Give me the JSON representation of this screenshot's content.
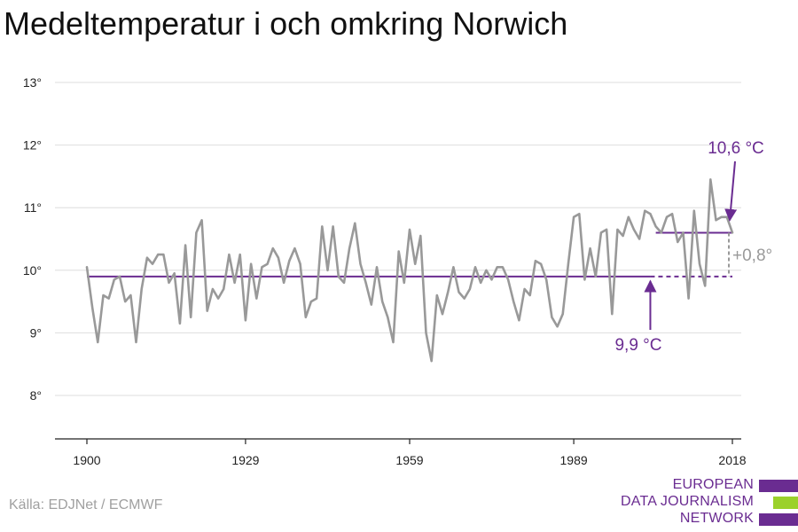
{
  "title": "Medeltemperatur i och omkring Norwich",
  "source": "Källa: EDJNet / ECMWF",
  "logo": {
    "line1": "EUROPEAN",
    "line2": "DATA JOURNALISM",
    "line3": "NETWORK",
    "colors": {
      "purple": "#6a2c91",
      "green": "#9bd12b"
    }
  },
  "colors": {
    "series": "#999999",
    "baseline": "#6a2c91",
    "recent": "#6a2c91",
    "difference": "#999999"
  },
  "chart_data": {
    "type": "line",
    "title": "Medeltemperatur i och omkring Norwich",
    "xlabel": "",
    "ylabel": "",
    "xlim": [
      1900,
      2018
    ],
    "ylim": [
      8,
      13
    ],
    "x_ticks": [
      1900,
      1929,
      1959,
      1989,
      2018
    ],
    "x_tick_labels": [
      "1900",
      "1929",
      "1959",
      "1989",
      "2018"
    ],
    "y_ticks": [
      8,
      9,
      10,
      11,
      12,
      13
    ],
    "y_tick_labels": [
      "8°",
      "9°",
      "10°",
      "11°",
      "12°",
      "13°"
    ],
    "grid": true,
    "series": [
      {
        "x": [
          1900,
          1901,
          1902,
          1903,
          1904,
          1905,
          1906,
          1907,
          1908,
          1909,
          1910,
          1911,
          1912,
          1913,
          1914,
          1915,
          1916,
          1917,
          1918,
          1919,
          1920,
          1921,
          1922,
          1923,
          1924,
          1925,
          1926,
          1927,
          1928,
          1929,
          1930,
          1931,
          1932,
          1933,
          1934,
          1935,
          1936,
          1937,
          1938,
          1939,
          1940,
          1941,
          1942,
          1943,
          1944,
          1945,
          1946,
          1947,
          1948,
          1949,
          1950,
          1951,
          1952,
          1953,
          1954,
          1955,
          1956,
          1957,
          1958,
          1959,
          1960,
          1961,
          1962,
          1963,
          1964,
          1965,
          1966,
          1967,
          1968,
          1969,
          1970,
          1971,
          1972,
          1973,
          1974,
          1975,
          1976,
          1977,
          1978,
          1979,
          1980,
          1981,
          1982,
          1983,
          1984,
          1985,
          1986,
          1987,
          1988,
          1989,
          1990,
          1991,
          1992,
          1993,
          1994,
          1995,
          1996,
          1997,
          1998,
          1999,
          2000,
          2001,
          2002,
          2003,
          2004,
          2005,
          2006,
          2007,
          2008,
          2009,
          2010,
          2011,
          2012,
          2013,
          2014,
          2015,
          2016,
          2017,
          2018
        ],
        "values": [
          10.05,
          9.4,
          8.85,
          9.6,
          9.55,
          9.85,
          9.9,
          9.5,
          9.6,
          8.85,
          9.7,
          10.2,
          10.1,
          10.25,
          10.25,
          9.8,
          9.95,
          9.15,
          10.4,
          9.25,
          10.6,
          10.8,
          9.35,
          9.7,
          9.55,
          9.7,
          10.25,
          9.8,
          10.25,
          9.2,
          10.1,
          9.55,
          10.05,
          10.1,
          10.35,
          10.2,
          9.8,
          10.15,
          10.35,
          10.1,
          9.25,
          9.5,
          9.55,
          10.7,
          10.0,
          10.7,
          9.9,
          9.8,
          10.35,
          10.75,
          10.1,
          9.8,
          9.45,
          10.05,
          9.5,
          9.25,
          8.85,
          10.3,
          9.8,
          10.65,
          10.1,
          10.55,
          9.0,
          8.55,
          9.6,
          9.3,
          9.65,
          10.05,
          9.65,
          9.55,
          9.7,
          10.05,
          9.8,
          10.0,
          9.85,
          10.05,
          10.05,
          9.85,
          9.5,
          9.2,
          9.7,
          9.6,
          10.15,
          10.1,
          9.85,
          9.25,
          9.1,
          9.3,
          10.1,
          10.85,
          10.9,
          9.85,
          10.35,
          9.9,
          10.6,
          10.65,
          9.3,
          10.65,
          10.55,
          10.85,
          10.65,
          10.5,
          10.95,
          10.9,
          10.7,
          10.6,
          10.85,
          10.9,
          10.45,
          10.6,
          9.55,
          10.95,
          10.1,
          9.75,
          11.45,
          10.8,
          10.85,
          10.85,
          10.6
        ]
      }
    ],
    "reference_lines": [
      {
        "label": "9,9 °C",
        "value": 9.9,
        "x_start": 1900,
        "x_solid_end": 2003,
        "x_end": 2018,
        "style": "solid-then-dashed"
      },
      {
        "label": "10,6 °C",
        "value": 10.6,
        "x_start": 2004,
        "x_end": 2018,
        "style": "solid"
      }
    ],
    "annotations": [
      {
        "text": "10,6 °C",
        "arrow_to": [
          2018,
          10.6
        ]
      },
      {
        "text": "9,9 °C",
        "arrow_to": [
          2003,
          9.9
        ]
      },
      {
        "text": "+0,8°",
        "between": [
          9.9,
          10.6
        ],
        "at_x": 2018
      }
    ]
  }
}
